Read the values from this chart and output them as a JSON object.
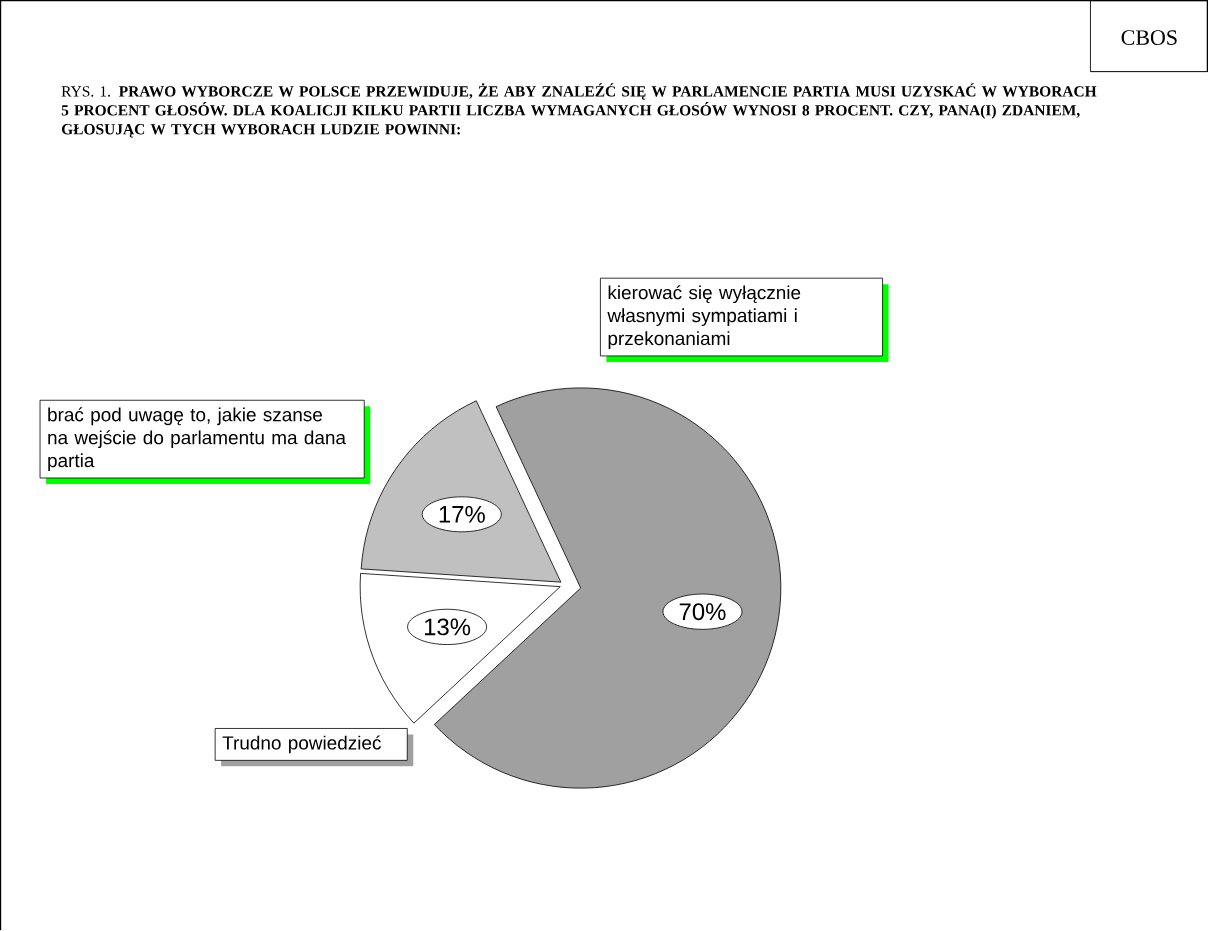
{
  "chart_data": {
    "type": "pie",
    "title": "RYS. 1. **PRAWO WYBORCZE W POLSCE PRZEWIDUJE, ŻE ABY ZNALEŹĆ SIĘ W PARLAMENCIE PARTIA MUSI UZYSKAĆ W WYBORACH 5 PROCENT GŁOSÓW. DLA KOALICJI KILKU PARTII LICZBA WYMAGANYCH GŁOSÓW WYNOSI 8 PROCENT. CZY, PANA(I) ZDANIEM, GŁOSUJĄC W TYCH WYBORACH LUDZIE POWINNI:**",
    "categories": [
      "kierować się wyłącznie własnymi sympatiami i przekonaniami",
      "Trudno powiedzieć",
      "brać pod uwagę to, jakie szanse na wejście do parlamentu ma dana partia"
    ],
    "values": [
      70,
      13,
      17
    ],
    "colors": [
      "#a0a0a0",
      "#ffffff",
      "#c0c0c0"
    ],
    "value_labels": [
      "70%",
      "13%",
      "17%"
    ],
    "annotations": [
      "CBOS"
    ]
  }
}
